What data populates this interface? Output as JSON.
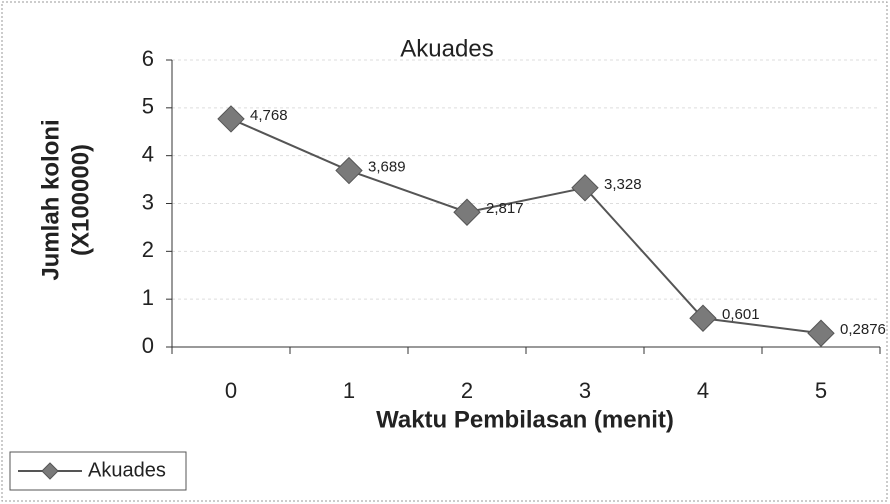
{
  "chart_data": {
    "type": "line",
    "title": "Akuades",
    "xlabel": "Waktu Pembilasan (menit)",
    "ylabel": [
      "Jumlah koloni",
      "(X100000)"
    ],
    "categories": [
      "0",
      "1",
      "2",
      "3",
      "4",
      "5"
    ],
    "series": [
      {
        "name": "Akuades",
        "color": "#7a7a7a",
        "values": [
          4.768,
          3.689,
          2.817,
          3.328,
          0.601,
          0.2876
        ],
        "value_labels": [
          "4,768",
          "3,689",
          "2,817",
          "3,328",
          "0,601",
          "0,2876"
        ]
      }
    ],
    "ylim": [
      0,
      6
    ],
    "yticks": [
      0,
      1,
      2,
      3,
      4,
      5,
      6
    ],
    "grid": true,
    "legend": "bottom-left"
  }
}
